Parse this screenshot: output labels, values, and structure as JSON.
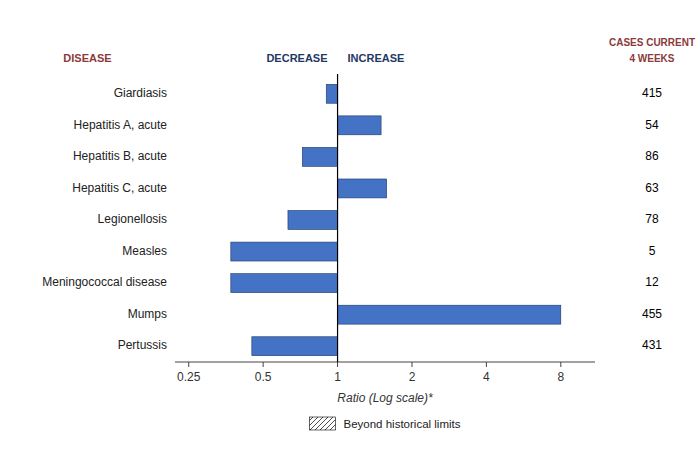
{
  "chart_data": {
    "type": "bar",
    "orientation": "horizontal",
    "log": "x",
    "categories": [
      "Giardiasis",
      "Hepatitis A, acute",
      "Hepatitis B, acute",
      "Hepatitis C, acute",
      "Legionellosis",
      "Measles",
      "Meningococcal disease",
      "Mumps",
      "Pertussis"
    ],
    "values": [
      0.9,
      1.5,
      0.72,
      1.58,
      0.63,
      0.37,
      0.37,
      8.0,
      0.45
    ],
    "cases": [
      415,
      54,
      86,
      63,
      78,
      5,
      12,
      455,
      431
    ],
    "color": "#4472C4",
    "reference_line": 1,
    "xlim": [
      0.22,
      11.0
    ],
    "xticks": [
      0.25,
      0.5,
      1,
      2,
      4,
      8
    ],
    "x_label": "Ratio (Log scale)*",
    "grid": false,
    "annotations": [
      {
        "text": "DISEASE",
        "color": "#8B3A3A"
      },
      {
        "text": "DECREASE",
        "color": "#1F3864"
      },
      {
        "text": "INCREASE",
        "color": "#1F3864"
      },
      {
        "text": "CASES CURRENT",
        "color": "#8B3A3A"
      },
      {
        "text": "4 WEEKS",
        "color": "#8B3A3A"
      },
      {
        "text": "Beyond historical limits"
      }
    ]
  }
}
